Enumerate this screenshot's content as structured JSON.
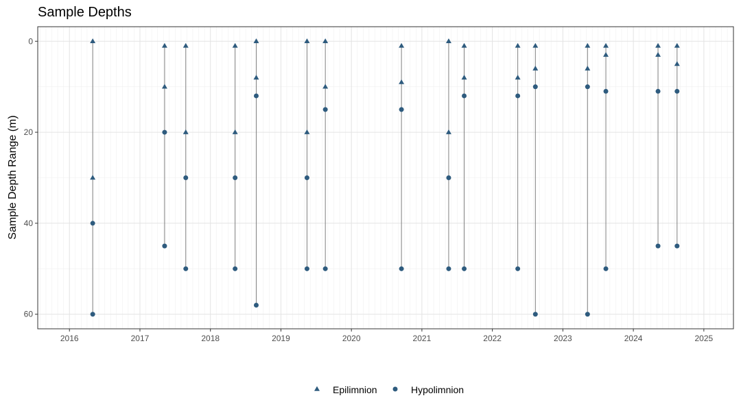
{
  "chart_data": {
    "type": "scatter",
    "title": "Sample Depths",
    "xlabel": "",
    "ylabel": "Sample Depth Range (m)",
    "xlim": [
      2015.55,
      2025.42
    ],
    "ylim": [
      63.2,
      -3.2
    ],
    "y_reversed": true,
    "x_ticks": [
      2016,
      2017,
      2018,
      2019,
      2020,
      2021,
      2022,
      2023,
      2024,
      2025
    ],
    "y_ticks": [
      0,
      20,
      40,
      60
    ],
    "grid": true,
    "legend_position": "bottom",
    "point_color": "#2e5b7e",
    "line_color": "#7f7f7f",
    "ranges": [
      {
        "date": 2016.33,
        "min": 0,
        "max": 60
      },
      {
        "date": 2017.35,
        "min": 1,
        "max": 45
      },
      {
        "date": 2017.65,
        "min": 1,
        "max": 50
      },
      {
        "date": 2018.35,
        "min": 1,
        "max": 50
      },
      {
        "date": 2018.65,
        "min": 0,
        "max": 58
      },
      {
        "date": 2019.37,
        "min": 0,
        "max": 50
      },
      {
        "date": 2019.63,
        "min": 0,
        "max": 50
      },
      {
        "date": 2020.71,
        "min": 1,
        "max": 50
      },
      {
        "date": 2021.38,
        "min": 0,
        "max": 50
      },
      {
        "date": 2021.6,
        "min": 1,
        "max": 50
      },
      {
        "date": 2022.36,
        "min": 1,
        "max": 50
      },
      {
        "date": 2022.61,
        "min": 1,
        "max": 60
      },
      {
        "date": 2023.35,
        "min": 1,
        "max": 60
      },
      {
        "date": 2023.61,
        "min": 1,
        "max": 50
      },
      {
        "date": 2024.35,
        "min": 1,
        "max": 45
      },
      {
        "date": 2024.62,
        "min": 1,
        "max": 45
      }
    ],
    "series": [
      {
        "name": "Epilimnion",
        "marker": "triangle",
        "points": [
          [
            2016.33,
            0
          ],
          [
            2016.33,
            30
          ],
          [
            2017.35,
            1
          ],
          [
            2017.35,
            10
          ],
          [
            2017.65,
            1
          ],
          [
            2017.65,
            20
          ],
          [
            2018.35,
            1
          ],
          [
            2018.35,
            20
          ],
          [
            2018.65,
            0
          ],
          [
            2018.65,
            8
          ],
          [
            2019.37,
            0
          ],
          [
            2019.37,
            20
          ],
          [
            2019.63,
            0
          ],
          [
            2019.63,
            10
          ],
          [
            2020.71,
            1
          ],
          [
            2020.71,
            9
          ],
          [
            2021.38,
            0
          ],
          [
            2021.38,
            20
          ],
          [
            2021.6,
            1
          ],
          [
            2021.6,
            8
          ],
          [
            2022.36,
            1
          ],
          [
            2022.36,
            8
          ],
          [
            2022.61,
            1
          ],
          [
            2022.61,
            6
          ],
          [
            2023.35,
            1
          ],
          [
            2023.35,
            6
          ],
          [
            2023.61,
            1
          ],
          [
            2023.61,
            3
          ],
          [
            2024.35,
            1
          ],
          [
            2024.35,
            3
          ],
          [
            2024.62,
            1
          ],
          [
            2024.62,
            5
          ]
        ]
      },
      {
        "name": "Hypolimnion",
        "marker": "circle",
        "points": [
          [
            2016.33,
            40
          ],
          [
            2016.33,
            60
          ],
          [
            2017.35,
            20
          ],
          [
            2017.35,
            45
          ],
          [
            2017.65,
            30
          ],
          [
            2017.65,
            50
          ],
          [
            2018.35,
            30
          ],
          [
            2018.35,
            50
          ],
          [
            2018.65,
            12
          ],
          [
            2018.65,
            58
          ],
          [
            2019.37,
            30
          ],
          [
            2019.37,
            50
          ],
          [
            2019.63,
            15
          ],
          [
            2019.63,
            50
          ],
          [
            2020.71,
            15
          ],
          [
            2020.71,
            50
          ],
          [
            2021.38,
            30
          ],
          [
            2021.38,
            50
          ],
          [
            2021.6,
            12
          ],
          [
            2021.6,
            50
          ],
          [
            2022.36,
            12
          ],
          [
            2022.36,
            50
          ],
          [
            2022.61,
            10
          ],
          [
            2022.61,
            60
          ],
          [
            2023.35,
            10
          ],
          [
            2023.35,
            60
          ],
          [
            2023.61,
            11
          ],
          [
            2023.61,
            50
          ],
          [
            2024.35,
            11
          ],
          [
            2024.35,
            45
          ],
          [
            2024.62,
            11
          ],
          [
            2024.62,
            45
          ]
        ]
      }
    ]
  }
}
